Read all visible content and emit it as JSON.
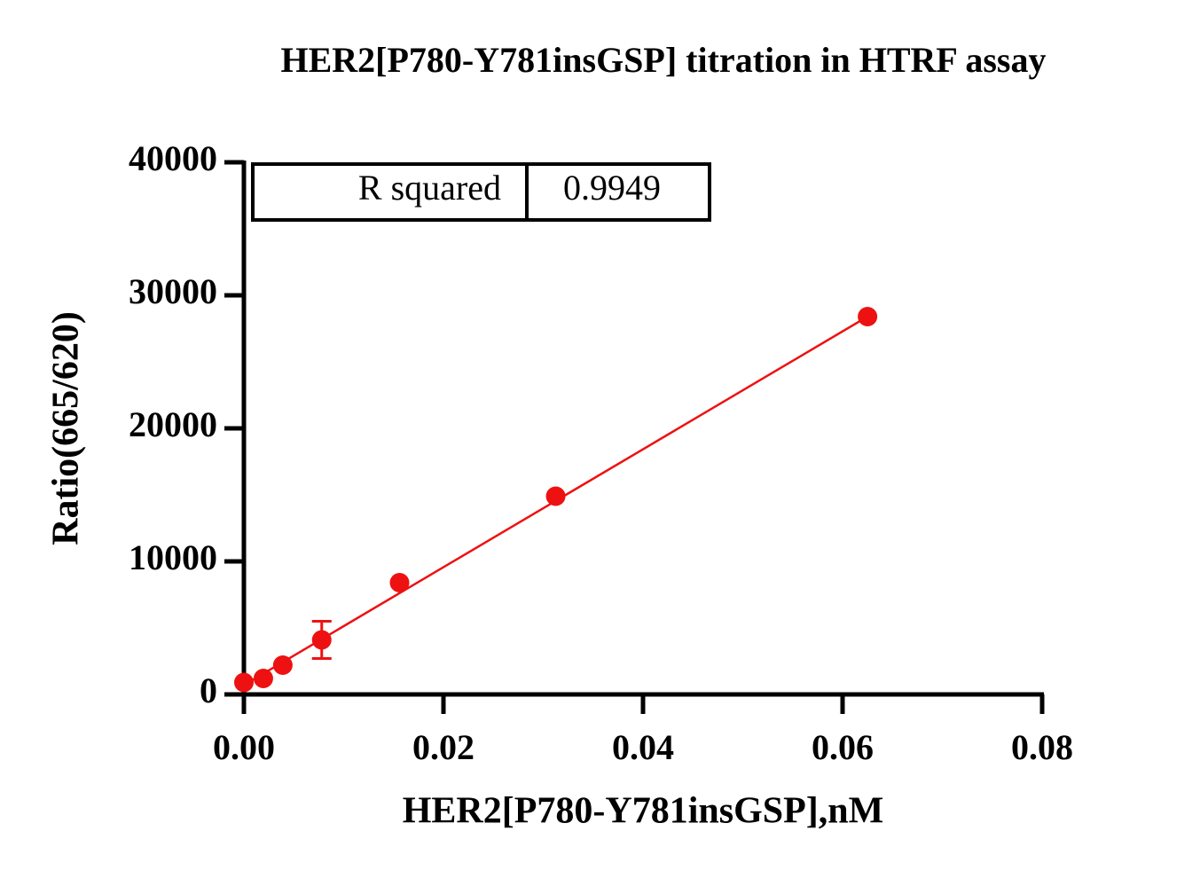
{
  "chart_data": {
    "type": "scatter",
    "title": "HER2[P780-Y781insGSP] titration in HTRF assay",
    "x_label": "HER2[P780-Y781insGSP],nM",
    "y_label": "Ratio(665/620)",
    "xlim": [
      0,
      0.08
    ],
    "ylim": [
      0,
      40000
    ],
    "xticks": [
      {
        "value": 0,
        "label": "0.00"
      },
      {
        "value": 0.02,
        "label": "0.02"
      },
      {
        "value": 0.04,
        "label": "0.04"
      },
      {
        "value": 0.06,
        "label": "0.06"
      },
      {
        "value": 0.08,
        "label": "0.08"
      }
    ],
    "yticks": [
      0,
      10000,
      20000,
      30000,
      40000
    ],
    "series": [
      {
        "color": "#ee1111",
        "x": [
          0,
          0.00195,
          0.0039,
          0.0078,
          0.0156,
          0.03125,
          0.0625
        ],
        "values": [
          900,
          1200,
          2200,
          4100,
          8400,
          14900,
          28400
        ],
        "errors": [
          null,
          null,
          null,
          1400,
          null,
          null,
          null
        ]
      },
      {
        "color": "#ee1111",
        "kind": "line",
        "x": [
          0,
          0.0625
        ],
        "values": [
          700,
          28400
        ]
      }
    ],
    "r_squared": {
      "label": "R squared",
      "value": 0.9949
    }
  }
}
